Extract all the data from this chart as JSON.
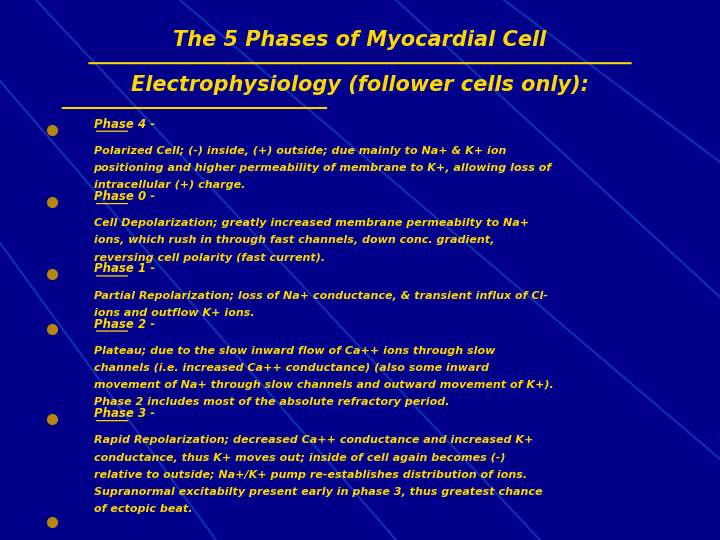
{
  "title_line1": "The 5 Phases of Myocardial Cell",
  "title_line2": "Electrophysiology (follower cells only):",
  "background_color": "#00008B",
  "title_color": "#FFD700",
  "text_color": "#FFD700",
  "bullet_color": "#B8860B",
  "phases": [
    {
      "header": "Phase 4 -",
      "body": "Polarized Cell; (-) inside, (+) outside; due mainly to Na+ & K+ ion\npositioning and higher permeability of membrane to K+, allowing loss of\nintracellular (+) charge."
    },
    {
      "header": "Phase 0 -",
      "body": "Cell Depolarization; greatly increased membrane permeabilty to Na+\nions, which rush in through fast channels, down conc. gradient,\nreversing cell polarity (fast current)."
    },
    {
      "header": "Phase 1 -",
      "body": "Partial Repolarization; loss of Na+ conductance, & transient influx of Cl-\nions and outflow K+ ions."
    },
    {
      "header": "Phase 2 -",
      "body": "Plateau; due to the slow inward flow of Ca++ ions through slow\nchannels (i.e. increased Ca++ conductance) (also some inward\nmovement of Na+ through slow channels and outward movement of K+).\nPhase 2 includes most of the absolute refractory period."
    },
    {
      "header": "Phase 3 -",
      "body": "Rapid Repolarization; decreased Ca++ conductance and increased K+\nconductance, thus K+ moves out; inside of cell again becomes (-)\nrelative to outside; Na+/K+ pump re-establishes distribution of ions.\nSupranormal excitabilty present early in phase 3, thus greatest chance\nof ectopic beat."
    }
  ],
  "diagonal_line_color": "#1E90FF",
  "fig_width": 7.2,
  "fig_height": 5.4
}
